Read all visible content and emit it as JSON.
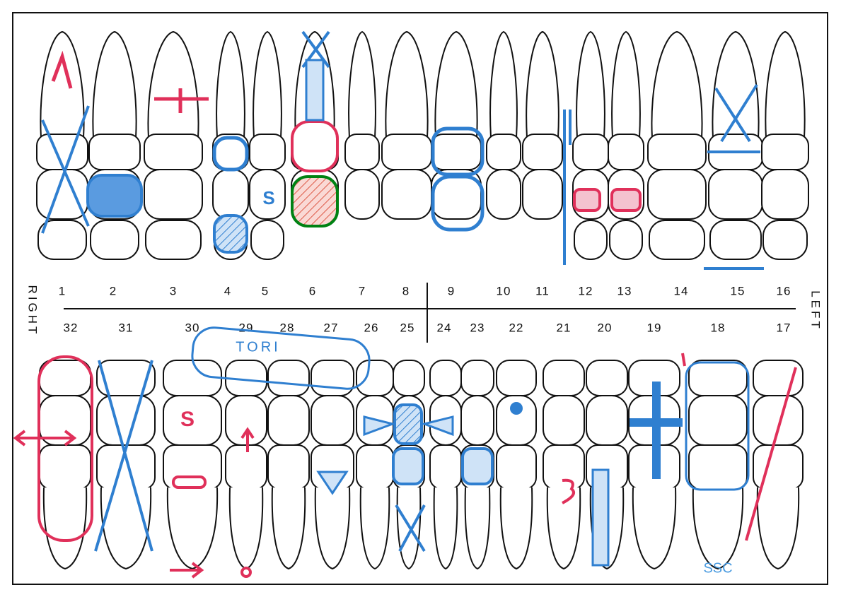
{
  "upper_numbers": [
    1,
    2,
    3,
    4,
    5,
    6,
    7,
    8,
    9,
    10,
    11,
    12,
    13,
    14,
    15,
    16
  ],
  "lower_numbers": [
    32,
    31,
    30,
    29,
    28,
    27,
    26,
    25,
    24,
    23,
    22,
    21,
    20,
    19,
    18,
    17
  ],
  "side_labels": {
    "right": "RIGHT",
    "left": "LEFT"
  },
  "annotations": {
    "tori": "TORI",
    "ssc": "SSC",
    "s_upper": "S",
    "s_lower": "S"
  }
}
